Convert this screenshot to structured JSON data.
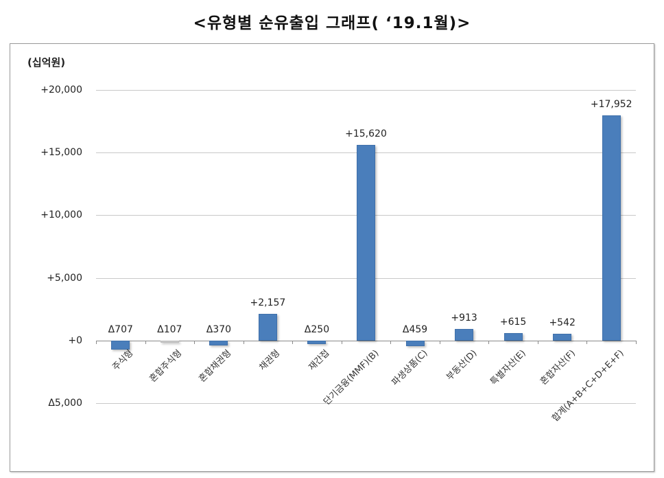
{
  "title": "<유형별 순유출입 그래프( ‘19.1월)>",
  "chart_data": {
    "type": "bar",
    "title": "<유형별 순유출입 그래프( ‘19.1월)>",
    "ylabel": "(십억원)",
    "xlabel": "",
    "ylim": [
      -5000,
      20000
    ],
    "yticks": [
      20000,
      15000,
      10000,
      5000,
      0,
      -5000
    ],
    "ytick_labels": [
      "+20,000",
      "+15,000",
      "+10,000",
      "+5,000",
      "+0",
      "Δ5,000"
    ],
    "grid": true,
    "legend": null,
    "categories": [
      "주식형",
      "혼합주식형",
      "혼합채권형",
      "채권형",
      "재간접",
      "단기금융(MMF)(B)",
      "파생상품(C)",
      "부동산(D)",
      "특별자산(E)",
      "혼합자산(F)",
      "합계(A+B+C+D+E+F)"
    ],
    "values": [
      -707,
      -107,
      -370,
      2157,
      -250,
      15620,
      -459,
      913,
      615,
      542,
      17952
    ],
    "value_labels": [
      "Δ707",
      "Δ107",
      "Δ370",
      "+2,157",
      "Δ250",
      "+15,620",
      "Δ459",
      "+913",
      "+615",
      "+542",
      "+17,952"
    ],
    "bar_color": "#4a7ebb"
  },
  "unit_label": "(십억원)"
}
